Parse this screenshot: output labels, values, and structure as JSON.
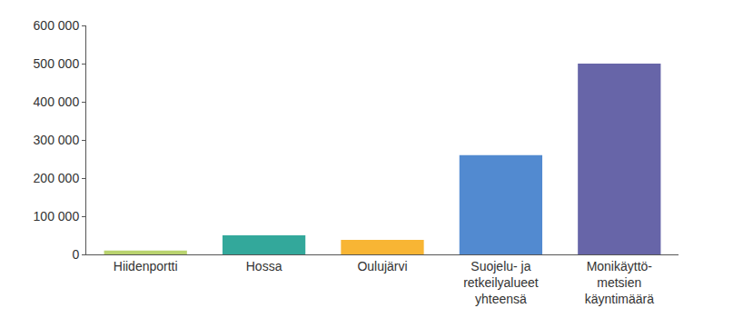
{
  "chart_data": {
    "type": "bar",
    "categories": [
      "Hiidenportti",
      "Hossa",
      "Oulujärvi",
      "Suojelu- ja\nretkeilyalueet\nyhteensä",
      "Monikäyttö-\nmetsien\nkäyntimäärä"
    ],
    "values": [
      10000,
      50000,
      38000,
      260000,
      500000
    ],
    "colors": [
      "#b9d36f",
      "#33a89b",
      "#f8b534",
      "#528ad0",
      "#6765a8"
    ],
    "ylim": [
      0,
      600000
    ],
    "yticks": [
      0,
      {
        "value": 100000,
        "label": "100 000"
      },
      {
        "value": 200000,
        "label": "200 000"
      },
      {
        "value": 300000,
        "label": "300 000"
      },
      {
        "value": 400000,
        "label": "400 000"
      },
      {
        "value": 500000,
        "label": "500 000"
      },
      {
        "value": 600000,
        "label": "600 000"
      }
    ],
    "grid": false
  }
}
